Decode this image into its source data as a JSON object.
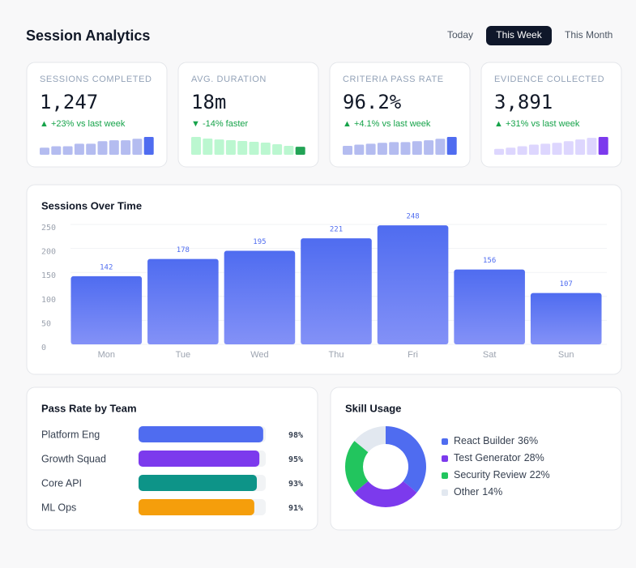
{
  "title": "Session Analytics",
  "tabs": [
    "Today",
    "This Week",
    "This Month"
  ],
  "active_tab": 1,
  "kpis": [
    {
      "label": "SESSIONS COMPLETED",
      "value": "1,247",
      "delta": "▲ +23% vs last week",
      "spark_color": "#b4bcf0",
      "spark_highlight": "#4f6cf0",
      "sparkline": [
        40,
        48,
        48,
        62,
        62,
        76,
        81,
        81,
        90,
        100
      ]
    },
    {
      "label": "AVG. DURATION",
      "value": "18m",
      "delta": "▼ -14% faster",
      "spark_color": "#bbf7d0",
      "spark_highlight": "#22a355",
      "sparkline": [
        100,
        91,
        86,
        82,
        77,
        73,
        68,
        59,
        50,
        45
      ]
    },
    {
      "label": "CRITERIA PASS RATE",
      "value": "96.2%",
      "delta": "▲ +4.1% vs last week",
      "spark_color": "#b4bcf0",
      "spark_highlight": "#4f6cf0",
      "sparkline": [
        50,
        57,
        62,
        67,
        71,
        71,
        76,
        81,
        90,
        100
      ]
    },
    {
      "label": "EVIDENCE COLLECTED",
      "value": "3,891",
      "delta": "▲ +31% vs last week",
      "spark_color": "#ddd6fe",
      "spark_highlight": "#7c3aed",
      "sparkline": [
        33,
        40,
        48,
        57,
        62,
        67,
        76,
        86,
        95,
        100
      ]
    }
  ],
  "chart_data": [
    {
      "type": "bar",
      "title": "Sessions Over Time",
      "categories": [
        "Mon",
        "Tue",
        "Wed",
        "Thu",
        "Fri",
        "Sat",
        "Sun"
      ],
      "values": [
        142,
        178,
        195,
        221,
        248,
        156,
        107
      ],
      "color": "#4f6cf0",
      "ylim": [
        0,
        250
      ],
      "yticks": [
        0,
        50,
        100,
        150,
        200,
        250
      ],
      "grid": true
    },
    {
      "type": "hbar",
      "title": "Pass Rate by Team",
      "categories": [
        "Platform Eng",
        "Growth Squad",
        "Core API",
        "ML Ops"
      ],
      "values": [
        98,
        95,
        93,
        91
      ],
      "value_labels": [
        "98%",
        "95%",
        "93%",
        "91%"
      ],
      "colors": [
        "#4f6cf0",
        "#7c3aed",
        "#0d9488",
        "#f59e0b"
      ],
      "xlim": [
        0,
        100
      ]
    },
    {
      "type": "donut",
      "title": "Skill Usage",
      "categories": [
        "React Builder",
        "Test Generator",
        "Security Review",
        "Other"
      ],
      "values": [
        36,
        28,
        22,
        14
      ],
      "value_labels": [
        "36%",
        "28%",
        "22%",
        "14%"
      ],
      "colors": [
        "#4f6cf0",
        "#7c3aed",
        "#22c55e",
        "#e2e8f0"
      ]
    }
  ]
}
